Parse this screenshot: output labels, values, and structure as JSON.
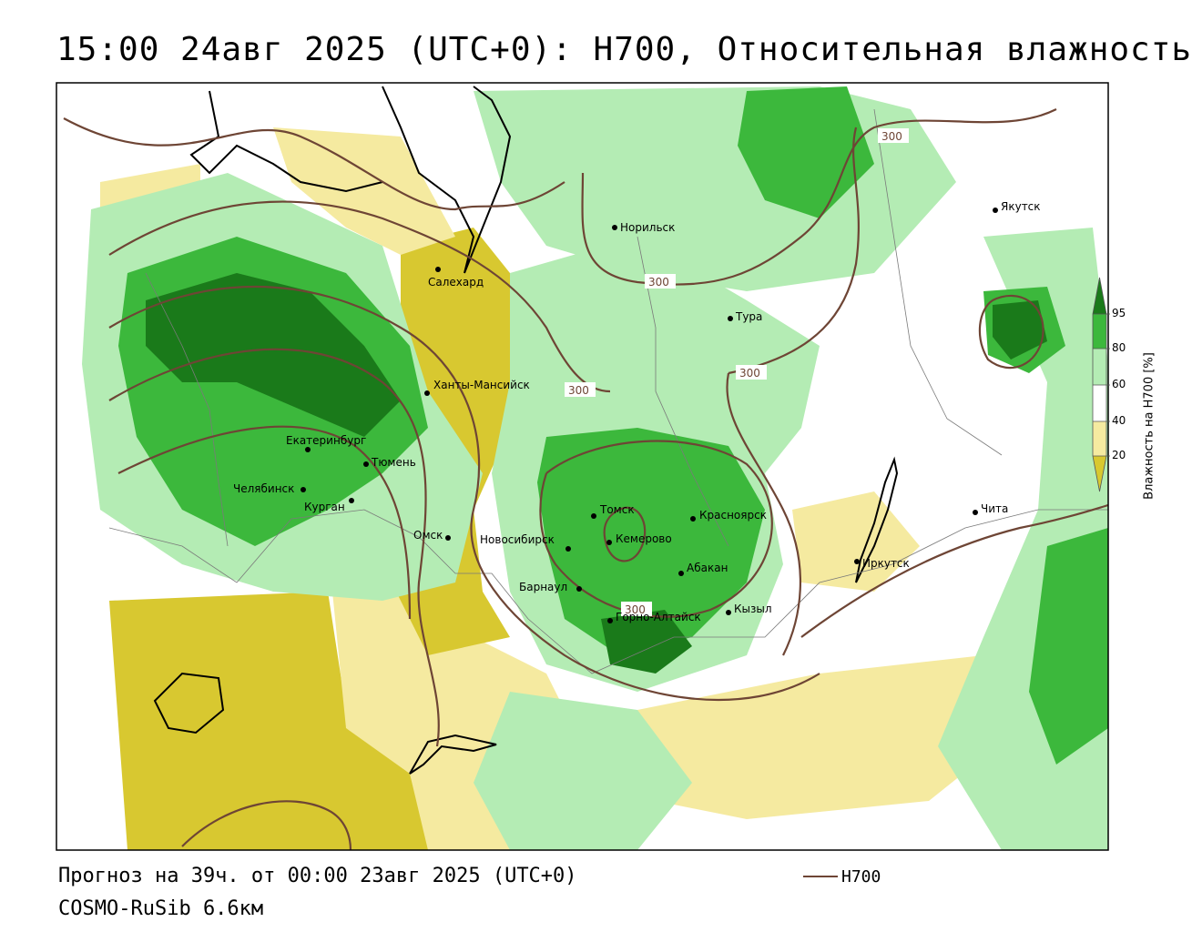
{
  "title": "15:00 24авг 2025 (UTC+0): H700, Относительная влажность",
  "footer": {
    "forecast": "Прогноз на 39ч. от 00:00 23авг 2025 (UTC+0)",
    "model": "COSMO-RuSib 6.6км"
  },
  "legend": {
    "line_label": "H700",
    "line_color": "#6e4535"
  },
  "colorbar": {
    "title": "Влажность на H700 [%]",
    "ticks": [
      "95",
      "80",
      "60",
      "40",
      "20"
    ],
    "colors": {
      "c95": "#1a7a1a",
      "c80": "#3cb83c",
      "c60": "#b4ecb4",
      "c40": "#ffffff",
      "c20": "#f5eaa0",
      "c0": "#d8c830"
    }
  },
  "cities": [
    {
      "name": "Норильск"
    },
    {
      "name": "Якутск"
    },
    {
      "name": "Салехард"
    },
    {
      "name": "Тура"
    },
    {
      "name": "Ханты-Мансийск"
    },
    {
      "name": "Екатеринбург"
    },
    {
      "name": "Тюмень"
    },
    {
      "name": "Челябинск"
    },
    {
      "name": "Курган"
    },
    {
      "name": "Омск"
    },
    {
      "name": "Новосибирск"
    },
    {
      "name": "Томск"
    },
    {
      "name": "Кемерово"
    },
    {
      "name": "Красноярск"
    },
    {
      "name": "Барнаул"
    },
    {
      "name": "Абакан"
    },
    {
      "name": "Горно-Алтайск"
    },
    {
      "name": "Кызыл"
    },
    {
      "name": "Иркутск"
    },
    {
      "name": "Чита"
    }
  ],
  "contour_labels": [
    "300",
    "300",
    "300",
    "300",
    "300"
  ]
}
